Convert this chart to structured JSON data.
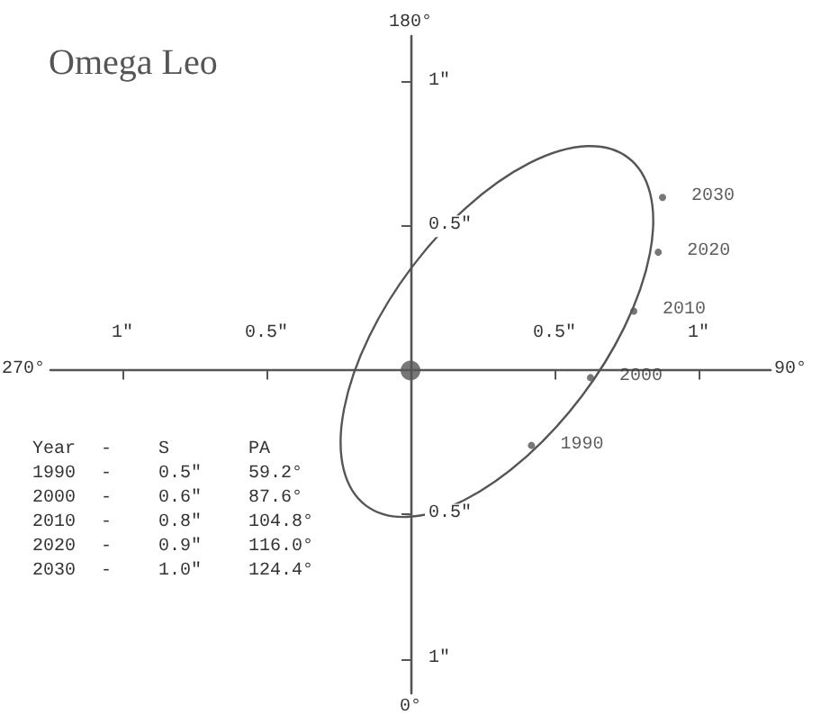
{
  "chart_data": {
    "type": "scatter",
    "title": "Omega Leo",
    "xlim": [
      -1.25,
      1.25
    ],
    "ylim": [
      -1.12,
      1.16
    ],
    "xticks": [
      {
        "value": -1,
        "label": "1\""
      },
      {
        "value": -0.5,
        "label": "0.5\""
      },
      {
        "value": 0.5,
        "label": "0.5\""
      },
      {
        "value": 1,
        "label": "1\""
      }
    ],
    "yticks": [
      {
        "value": -1,
        "label": "1\""
      },
      {
        "value": -0.5,
        "label": "0.5\""
      },
      {
        "value": 0.5,
        "label": "0.5\""
      },
      {
        "value": 1,
        "label": "1\""
      }
    ],
    "grid": false,
    "series": [
      {
        "name": "1990",
        "color": "#555555",
        "marker": "circle",
        "x": [
          0.42
        ],
        "values": [
          -0.26
        ]
      },
      {
        "name": "2000",
        "color": "#555555",
        "marker": "circle",
        "x": [
          0.625
        ],
        "values": [
          -0.025
        ]
      },
      {
        "name": "2010",
        "color": "#555555",
        "marker": "circle",
        "x": [
          0.775
        ],
        "values": [
          0.206
        ]
      },
      {
        "name": "2020",
        "color": "#555555",
        "marker": "circle",
        "x": [
          0.86
        ],
        "values": [
          0.41
        ]
      },
      {
        "name": "2030",
        "color": "#555555",
        "marker": "circle",
        "x": [
          0.875
        ],
        "values": [
          0.6
        ]
      },
      {
        "color": "#555555",
        "marker": "circle",
        "x": [
          0
        ],
        "values": [
          0
        ]
      }
    ],
    "annotations": [
      "90°",
      "180°",
      "270°",
      "0°",
      "Year",
      "-",
      "S",
      "PA",
      "1990",
      "-",
      "0.5\"",
      "59.2°",
      "2000",
      "-",
      "0.6\"",
      "87.6°",
      "2010",
      "-",
      "0.8\"",
      "104.8°",
      "2020",
      "-",
      "0.9\"",
      "116.0°",
      "2030",
      "-",
      "1.0\"",
      "124.4°"
    ]
  }
}
